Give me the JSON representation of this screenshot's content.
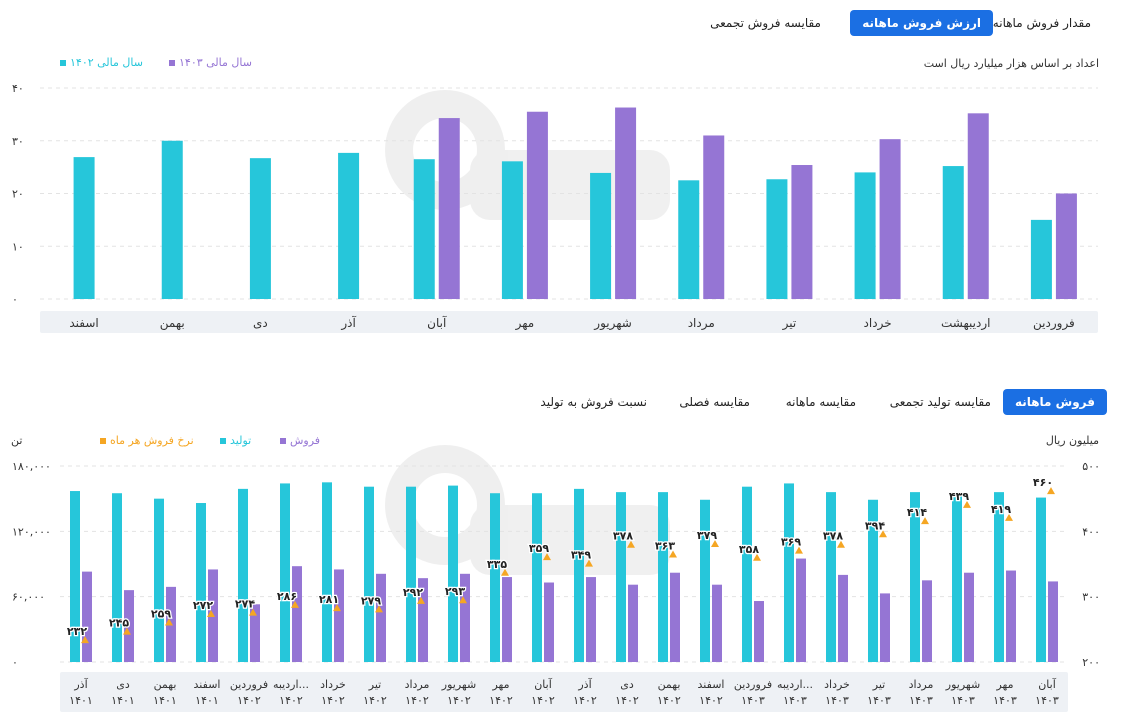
{
  "top": {
    "tabs": [
      {
        "label": "مقدار فروش ماهانه",
        "active": false
      },
      {
        "label": "ارزش فروش ماهانه",
        "active": true
      },
      {
        "label": "مقایسه فروش تجمعی",
        "active": false
      }
    ],
    "unit_note": "اعداد بر اساس هزار میلیارد ریال است",
    "legend": [
      {
        "label": "سال مالی ۱۴۰۳",
        "color": "#9575d4"
      },
      {
        "label": "سال مالی ۱۴۰۲",
        "color": "#26c6da"
      }
    ]
  },
  "bottom": {
    "tabs": [
      {
        "label": "فروش ماهانه",
        "active": true
      },
      {
        "label": "مقایسه تولید تجمعی",
        "active": false
      },
      {
        "label": "مقایسه ماهانه",
        "active": false
      },
      {
        "label": "مقایسه فصلی",
        "active": false
      },
      {
        "label": "نسبت فروش به تولید",
        "active": false
      }
    ],
    "left_unit": "تن",
    "right_unit": "میلیون ریال",
    "legend": [
      {
        "label": "فروش",
        "color": "#9575d4"
      },
      {
        "label": "تولید",
        "color": "#26c6da"
      },
      {
        "label": "نرخ فروش هر ماه",
        "color": "#f5a623"
      }
    ]
  },
  "chart_data": [
    {
      "type": "bar",
      "categories": [
        "فروردین",
        "اردیبهشت",
        "خرداد",
        "تیر",
        "مرداد",
        "شهریور",
        "مهر",
        "آبان",
        "آذر",
        "دی",
        "بهمن",
        "اسفند"
      ],
      "series": [
        {
          "name": "سال مالی ۱۴۰۲",
          "color": "#26c6da",
          "values": [
            15,
            25.2,
            24,
            22.7,
            22.5,
            23.9,
            26.1,
            26.5,
            27.7,
            26.7,
            30,
            26.9
          ]
        },
        {
          "name": "سال مالی ۱۴۰۳",
          "color": "#9575d4",
          "values": [
            20,
            35.2,
            30.3,
            25.4,
            31,
            36.3,
            35.5,
            34.3,
            null,
            null,
            null,
            null
          ]
        }
      ],
      "ylim": [
        0,
        40
      ],
      "yticks": [
        "۰",
        "۱۰",
        "۲۰",
        "۳۰",
        "۴۰"
      ],
      "grid": true
    },
    {
      "type": "bar",
      "categories": [
        [
          "آذر",
          "۱۴۰۱"
        ],
        [
          "دی",
          "۱۴۰۱"
        ],
        [
          "بهمن",
          "۱۴۰۱"
        ],
        [
          "اسفند",
          "۱۴۰۱"
        ],
        [
          "فروردین",
          "۱۴۰۲"
        ],
        [
          "اردیبه...",
          "۱۴۰۲"
        ],
        [
          "خرداد",
          "۱۴۰۲"
        ],
        [
          "تیر",
          "۱۴۰۲"
        ],
        [
          "مرداد",
          "۱۴۰۲"
        ],
        [
          "شهریور",
          "۱۴۰۲"
        ],
        [
          "مهر",
          "۱۴۰۲"
        ],
        [
          "آبان",
          "۱۴۰۲"
        ],
        [
          "آذر",
          "۱۴۰۲"
        ],
        [
          "دی",
          "۱۴۰۲"
        ],
        [
          "بهمن",
          "۱۴۰۲"
        ],
        [
          "اسفند",
          "۱۴۰۲"
        ],
        [
          "فروردین",
          "۱۴۰۳"
        ],
        [
          "اردیبه...",
          "۱۴۰۳"
        ],
        [
          "خرداد",
          "۱۴۰۳"
        ],
        [
          "تیر",
          "۱۴۰۳"
        ],
        [
          "مرداد",
          "۱۴۰۳"
        ],
        [
          "شهریور",
          "۱۴۰۳"
        ],
        [
          "مهر",
          "۱۴۰۳"
        ],
        [
          "آبان",
          "۱۴۰۳"
        ]
      ],
      "series": [
        {
          "name": "تولید",
          "color": "#26c6da",
          "values": [
            157000,
            155000,
            150000,
            146000,
            159000,
            164000,
            165000,
            161000,
            161000,
            162000,
            155000,
            155000,
            159000,
            156000,
            156000,
            149000,
            161000,
            164000,
            156000,
            149000,
            156000,
            156000,
            156000,
            151000
          ]
        },
        {
          "name": "فروش",
          "color": "#9575d4",
          "values": [
            83000,
            66000,
            69000,
            85000,
            53000,
            88000,
            85000,
            81000,
            77000,
            81000,
            78000,
            73000,
            78000,
            71000,
            82000,
            71000,
            56000,
            95000,
            80000,
            63000,
            75000,
            82000,
            84000,
            74000
          ]
        },
        {
          "name": "نرخ فروش هر ماه",
          "color": "#f5a623",
          "values": [
            232,
            245,
            259,
            272,
            274,
            286,
            281,
            279,
            292,
            293,
            335,
            359,
            349,
            378,
            363,
            379,
            358,
            369,
            378,
            394,
            414,
            439,
            419,
            460
          ],
          "labels": [
            "۲۳۲",
            "۲۴۵",
            "۲۵۹",
            "۲۷۲",
            "۲۷۴",
            "۲۸۶",
            "۲۸۱",
            "۲۷۹",
            "۲۹۲",
            "۲۹۳",
            "۳۳۵",
            "۳۵۹",
            "۳۴۹",
            "۳۷۸",
            "۳۶۳",
            "۳۷۹",
            "۳۵۸",
            "۳۶۹",
            "۳۷۸",
            "۳۹۴",
            "۴۱۴",
            "۴۳۹",
            "۴۱۹",
            "۴۶۰"
          ]
        }
      ],
      "ylim_left": [
        0,
        180000
      ],
      "yticks_left": [
        "۰",
        "۶۰,۰۰۰",
        "۱۲۰,۰۰۰",
        "۱۸۰,۰۰۰"
      ],
      "ylim_right": [
        200,
        500
      ],
      "yticks_right": [
        "۲۰۰",
        "۳۰۰",
        "۴۰۰",
        "۵۰۰"
      ],
      "grid": true
    }
  ]
}
